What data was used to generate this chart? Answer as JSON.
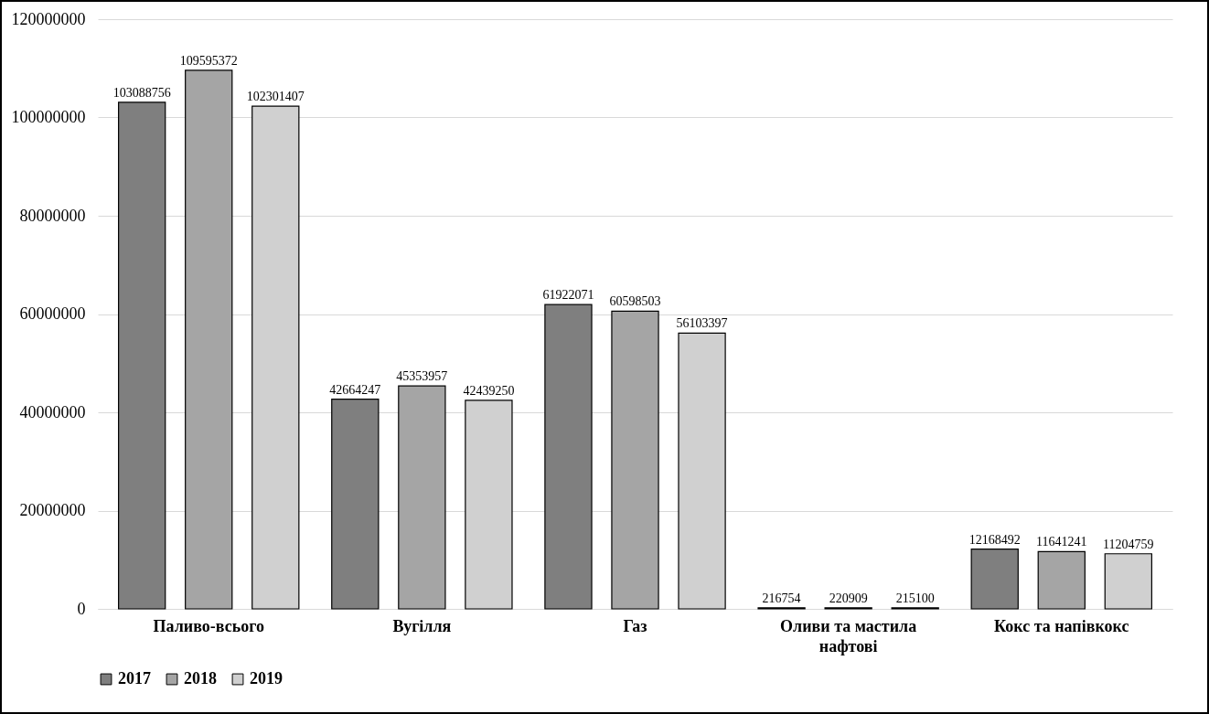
{
  "chart_data": {
    "type": "bar",
    "categories": [
      "Паливо-всього",
      "Вугілля",
      "Газ",
      "Оливи та мастила нафтові",
      "Кокс та напівкокс"
    ],
    "series": [
      {
        "name": "2017",
        "color": "#7f7f7f",
        "values": [
          103088756,
          42664247,
          61922071,
          216754,
          12168492
        ]
      },
      {
        "name": "2018",
        "color": "#a5a5a5",
        "values": [
          109595372,
          45353957,
          60598503,
          220909,
          11641241
        ]
      },
      {
        "name": "2019",
        "color": "#d0d0d0",
        "values": [
          102301407,
          42439250,
          56103397,
          215100,
          11204759
        ]
      }
    ],
    "ylim": [
      0,
      120000000
    ],
    "yticks": [
      0,
      20000000,
      40000000,
      60000000,
      80000000,
      100000000,
      120000000
    ],
    "grid": "y",
    "legend": "bottom",
    "data_labels": true
  }
}
